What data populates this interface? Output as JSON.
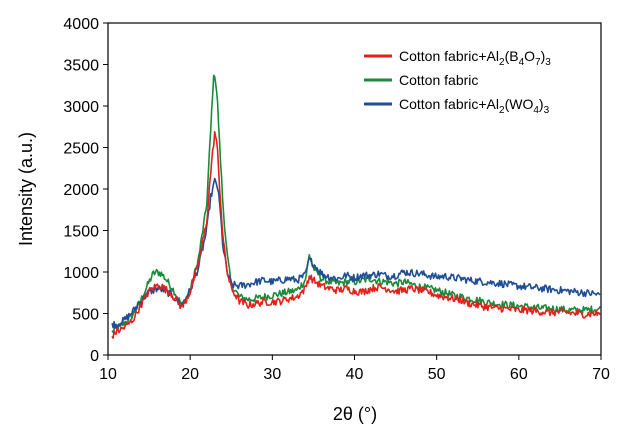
{
  "chart_data": {
    "type": "line",
    "title": "",
    "xlabel": "2θ (°)",
    "ylabel": "Intensity (a.u.)",
    "xlim": [
      10,
      70
    ],
    "ylim": [
      0,
      4000
    ],
    "xticks": [
      "10",
      "20",
      "30",
      "40",
      "50",
      "60",
      "70"
    ],
    "yticks": [
      "0",
      "500",
      "1000",
      "1500",
      "2000",
      "2500",
      "3000",
      "3500",
      "4000"
    ],
    "grid": false,
    "legend_position": "top-right",
    "legend": [
      {
        "base": "Cotton fabric+Al",
        "sub1": "2",
        "mid": "(B",
        "sub2": "4",
        "mid2": "O",
        "sub3": "7",
        "end": ")",
        "sub4": "3"
      },
      {
        "base": "Cotton fabric"
      },
      {
        "base": "Cotton fabric+Al",
        "sub1": "2",
        "mid": "(WO",
        "sub2": "4",
        "mid2": "",
        "sub3": "",
        "end": ")",
        "sub4": "3"
      }
    ],
    "series": [
      {
        "name": "Cotton fabric+Al2(B4O7)3",
        "color": "#e3201b",
        "x": [
          10.5,
          11,
          12,
          13,
          14,
          15,
          16,
          16.5,
          17,
          17.5,
          18,
          19,
          20,
          21,
          22,
          22.5,
          23,
          23.3,
          23.6,
          24,
          24.5,
          25,
          26,
          27,
          28,
          29,
          30,
          31,
          32,
          33,
          34,
          34.5,
          35,
          36,
          37,
          38,
          39,
          40,
          41,
          42,
          43,
          44,
          45,
          46,
          47,
          48,
          49,
          50,
          51,
          52,
          53,
          54,
          55,
          56,
          57,
          58,
          59,
          60,
          61,
          62,
          63,
          64,
          65,
          66,
          67,
          68,
          69,
          70
        ],
        "y": [
          230,
          280,
          330,
          420,
          600,
          770,
          840,
          830,
          790,
          760,
          700,
          570,
          760,
          1100,
          1600,
          2200,
          2700,
          2500,
          2000,
          1400,
          1000,
          800,
          650,
          600,
          620,
          640,
          640,
          650,
          680,
          700,
          800,
          950,
          900,
          830,
          800,
          780,
          800,
          770,
          760,
          800,
          820,
          800,
          770,
          780,
          800,
          780,
          760,
          720,
          700,
          680,
          660,
          620,
          600,
          580,
          570,
          560,
          550,
          540,
          540,
          530,
          520,
          510,
          520,
          510,
          500,
          490,
          500,
          500
        ]
      },
      {
        "name": "Cotton fabric",
        "color": "#1a8a3b",
        "x": [
          10.5,
          11,
          12,
          13,
          14,
          15,
          15.5,
          16,
          16.5,
          17,
          17.5,
          18,
          19,
          20,
          21,
          22,
          22.5,
          22.8,
          23,
          23.3,
          23.6,
          24,
          24.5,
          25,
          26,
          27,
          28,
          29,
          30,
          31,
          32,
          33,
          34,
          34.5,
          35,
          36,
          37,
          38,
          39,
          40,
          41,
          42,
          43,
          44,
          45,
          46,
          47,
          48,
          49,
          50,
          51,
          52,
          53,
          54,
          55,
          56,
          57,
          58,
          59,
          60,
          61,
          62,
          63,
          64,
          65,
          66,
          67,
          68,
          69,
          70
        ],
        "y": [
          280,
          320,
          380,
          480,
          660,
          880,
          980,
          1000,
          980,
          920,
          850,
          780,
          600,
          780,
          1150,
          1800,
          2700,
          3300,
          3400,
          3100,
          2500,
          1800,
          1200,
          850,
          700,
          670,
          680,
          700,
          720,
          740,
          760,
          780,
          900,
          1200,
          1050,
          920,
          880,
          860,
          880,
          880,
          900,
          920,
          890,
          880,
          860,
          880,
          850,
          820,
          800,
          780,
          750,
          720,
          700,
          680,
          660,
          640,
          620,
          610,
          600,
          590,
          580,
          570,
          560,
          560,
          550,
          540,
          540,
          540,
          550,
          560
        ]
      },
      {
        "name": "Cotton fabric+Al2(WO4)3",
        "color": "#1f4e96",
        "x": [
          10.5,
          11,
          12,
          13,
          14,
          15,
          16,
          16.5,
          17,
          17.5,
          18,
          19,
          20,
          21,
          22,
          22.5,
          23,
          23.3,
          23.6,
          24,
          24.5,
          25,
          26,
          27,
          28,
          29,
          30,
          31,
          32,
          33,
          34,
          34.5,
          35,
          36,
          37,
          38,
          39,
          40,
          41,
          42,
          43,
          44,
          45,
          46,
          47,
          48,
          49,
          50,
          51,
          52,
          53,
          54,
          55,
          56,
          57,
          58,
          59,
          60,
          61,
          62,
          63,
          64,
          65,
          66,
          67,
          68,
          69,
          70
        ],
        "y": [
          380,
          360,
          420,
          520,
          650,
          760,
          800,
          790,
          770,
          740,
          700,
          600,
          780,
          1050,
          1500,
          1900,
          2100,
          2050,
          1800,
          1300,
          1000,
          850,
          830,
          850,
          880,
          900,
          880,
          900,
          920,
          900,
          960,
          1150,
          1100,
          980,
          940,
          920,
          960,
          930,
          960,
          960,
          980,
          950,
          960,
          1000,
          990,
          980,
          960,
          940,
          950,
          930,
          920,
          900,
          890,
          880,
          870,
          860,
          840,
          830,
          820,
          810,
          800,
          790,
          780,
          770,
          760,
          750,
          740,
          720
        ]
      }
    ]
  }
}
